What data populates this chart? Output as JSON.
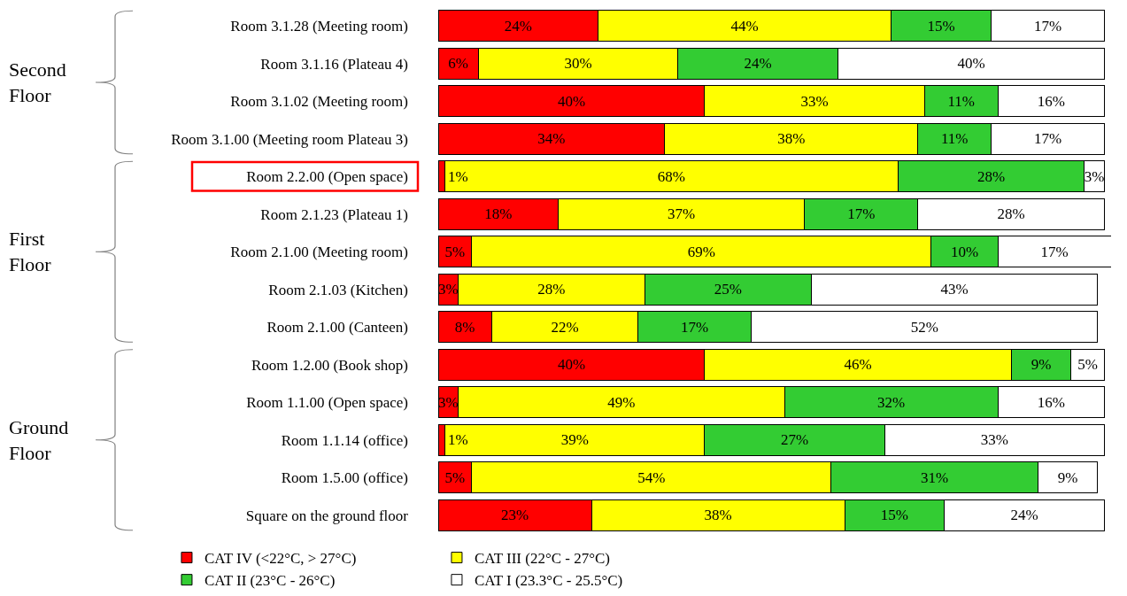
{
  "chart_data": {
    "type": "bar",
    "orientation": "horizontal",
    "stacked": true,
    "tick_labels": "y",
    "legend": "bottom",
    "categories": [
      "Room 3.1.28 (Meeting room)",
      "Room 3.1.16 (Plateau 4)",
      "Room 3.1.02 (Meeting room)",
      "Room 3.1.00 (Meeting room Plateau 3)",
      "Room 2.2.00 (Open space)",
      "Room 2.1.23 (Plateau 1)",
      "Room 2.1.00 (Meeting room)",
      "Room 2.1.03 (Kitchen)",
      "Room 2.1.00 (Canteen)",
      "Room 1.2.00 (Book shop)",
      "Room 1.1.00 (Open space)",
      "Room 1.1.14 (office)",
      "Room 1.5.00 (office)",
      "Square on the ground floor"
    ],
    "series": [
      {
        "name": "CAT IV (<22°C, > 27°C)",
        "color": "#ff0000",
        "values": [
          24,
          6,
          40,
          34,
          1,
          18,
          5,
          3,
          8,
          40,
          3,
          1,
          5,
          23
        ],
        "value_labels": [
          "24%",
          "6%",
          "40%",
          "34%",
          "1%",
          "18%",
          "5%",
          "3%",
          "8%",
          "40%",
          "3%",
          "1%",
          "5%",
          "23%"
        ]
      },
      {
        "name": "CAT III (22°C - 27°C)",
        "color": "#ffff00",
        "values": [
          44,
          30,
          33,
          38,
          68,
          37,
          69,
          28,
          22,
          46,
          49,
          39,
          54,
          38
        ],
        "value_labels": [
          "44%",
          "30%",
          "33%",
          "38%",
          "68%",
          "37%",
          "69%",
          "28%",
          "22%",
          "46%",
          "49%",
          "39%",
          "54%",
          "38%"
        ]
      },
      {
        "name": "CAT II (23°C - 26°C)",
        "color": "#33cc33",
        "values": [
          15,
          24,
          11,
          11,
          28,
          17,
          10,
          25,
          17,
          9,
          32,
          27,
          31,
          15
        ],
        "value_labels": [
          "15%",
          "24%",
          "11%",
          "11%",
          "28%",
          "17%",
          "10%",
          "25%",
          "17%",
          "9%",
          "32%",
          "27%",
          "31%",
          "15%"
        ]
      },
      {
        "name": "CAT I (23.3°C - 25.5°C)",
        "color": "#ffffff",
        "values": [
          17,
          40,
          16,
          17,
          3,
          28,
          17,
          43,
          52,
          5,
          16,
          33,
          9,
          24
        ],
        "value_labels": [
          "17%",
          "40%",
          "16%",
          "17%",
          "3%",
          "28%",
          "17%",
          "43%",
          "52%",
          "5%",
          "16%",
          "33%",
          "9%",
          "24%"
        ]
      }
    ],
    "annotations": [
      "Second\nFloor",
      "First\nFloor",
      "Ground\nFloor"
    ]
  }
}
